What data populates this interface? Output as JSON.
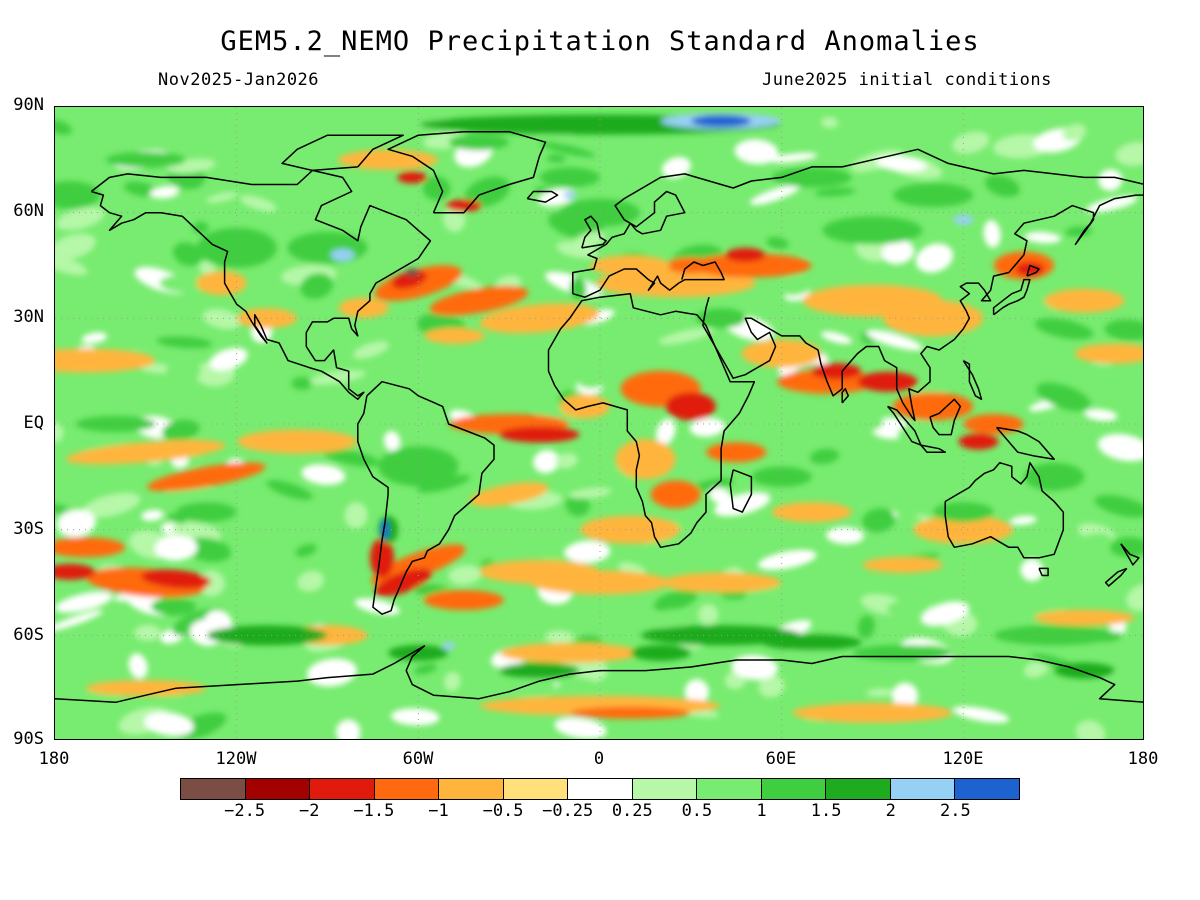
{
  "title": "GEM5.2_NEMO Precipitation Standard Anomalies",
  "period": "Nov2025-Jan2026",
  "init": "June2025 initial conditions",
  "lat_labels": [
    "90N",
    "60N",
    "30N",
    "EQ",
    "30S",
    "60S",
    "90S"
  ],
  "lon_labels": [
    "180",
    "120W",
    "60W",
    "0",
    "60E",
    "120E",
    "180"
  ],
  "colorbar": {
    "colors": [
      "#7a4e44",
      "#a30000",
      "#e01b0e",
      "#ff6a10",
      "#ffb53d",
      "#ffe07a",
      "#ffffff",
      "#b6f7a8",
      "#78ec70",
      "#3fce3f",
      "#1fab1f",
      "#96d0f4",
      "#1c63d0"
    ],
    "labels": [
      "-2.5",
      "-2",
      "-1.5",
      "-1",
      "-0.5",
      "-0.25",
      "0.25",
      "0.5",
      "1",
      "1.5",
      "2",
      "2.5"
    ]
  }
}
